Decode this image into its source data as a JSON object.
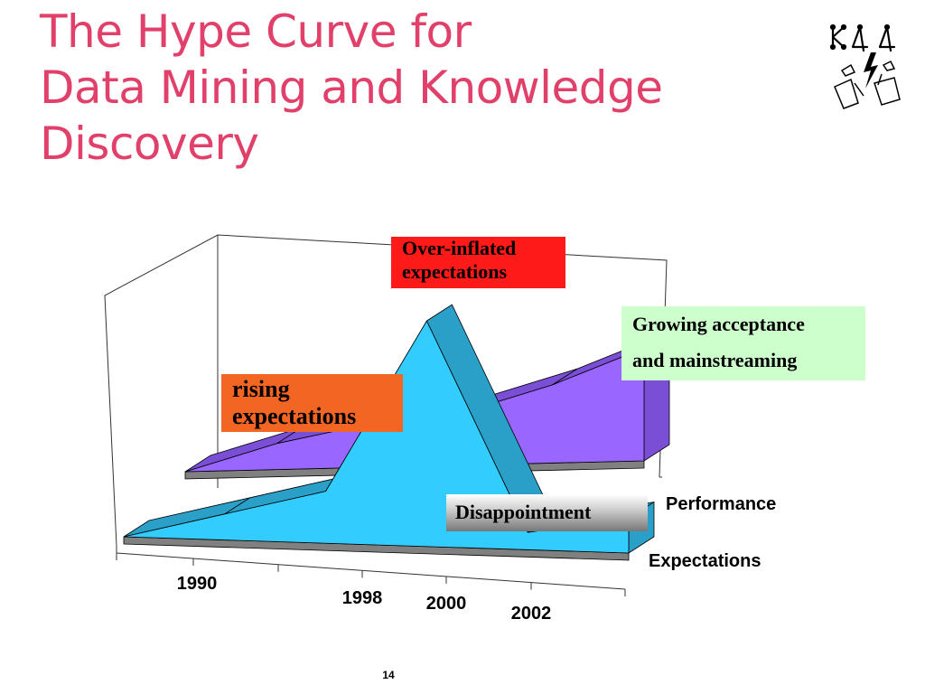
{
  "slide": {
    "title_lines": [
      "The Hype Curve for",
      "Data Mining and Knowledge",
      "Discovery"
    ],
    "page_number": "14",
    "title_color": "#e0406a",
    "logo_icon": "kdd-logo-icon"
  },
  "callouts": {
    "over_inflated": [
      "Over-inflated",
      "expectations"
    ],
    "growing": [
      "Growing acceptance",
      "and mainstreaming"
    ],
    "rising": [
      "rising",
      "expectations"
    ],
    "disappointment": "Disappointment"
  },
  "chart_data": {
    "type": "area",
    "x_ticks_shown": [
      "1990",
      "1998",
      "2000",
      "2002"
    ],
    "series": [
      {
        "name": "Expectations",
        "values": [
          0,
          3,
          6,
          26,
          2,
          4
        ],
        "color": "#33ccff"
      },
      {
        "name": "Performance",
        "values": [
          0,
          3,
          5,
          6,
          9,
          13
        ],
        "color": "#9966ff"
      }
    ],
    "colors": {
      "front_side": "#2aa0c8",
      "back_top": "#7a4fd6",
      "floor": "#808080",
      "floor_edge": "#a0a0a0"
    }
  }
}
